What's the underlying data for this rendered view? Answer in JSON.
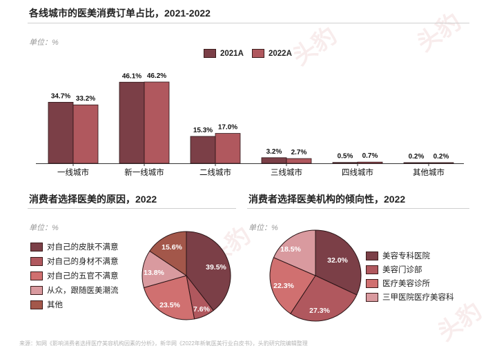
{
  "bar_section": {
    "title": "各线城市的医美消费订单占比，2021-2022",
    "unit": "单位：%"
  },
  "reasons_section": {
    "title": "消费者选择医美的原因，2022",
    "unit": "单位：%"
  },
  "institutions_section": {
    "title": "消费者选择医美机构的倾向性，2022",
    "unit": "单位：%"
  },
  "watermark": "头豹",
  "source": "来源：知网《影响消费者选择医疗美容机构因素的分析》，新华网《2022年新氧医美行业白皮书》，头豹研究院编辑整理",
  "colors": {
    "dark": "#7b3f47",
    "mid": "#b0585e",
    "light": "#d07070",
    "pale": "#d99a9f",
    "brown": "#a3574a"
  },
  "chart_data": [
    {
      "type": "bar",
      "categories": [
        "一线城市",
        "新一线城市",
        "二线城市",
        "三线城市",
        "四线城市",
        "其他城市"
      ],
      "series": [
        {
          "name": "2021A",
          "values": [
            34.7,
            46.1,
            15.3,
            3.2,
            0.5,
            0.2
          ],
          "labels": [
            "34.7%",
            "46.1%",
            "15.3%",
            "3.2%",
            "0.5%",
            "0.2%"
          ],
          "color": "#7b3f47"
        },
        {
          "name": "2022A",
          "values": [
            33.2,
            46.2,
            17.0,
            2.7,
            0.7,
            0.2
          ],
          "labels": [
            "33.2%",
            "46.2%",
            "17.0%",
            "2.7%",
            "0.7%",
            "0.2%"
          ],
          "color": "#b0585e"
        }
      ],
      "ylim": [
        0,
        46.2
      ],
      "legend_position": "top-right"
    },
    {
      "type": "pie",
      "slices": [
        {
          "label": "对自己的皮肤不满意",
          "value": 39.5,
          "text": "39.5%",
          "color": "#7b3f47"
        },
        {
          "label": "对自己的身材不满意",
          "value": 7.6,
          "text": "7.6%",
          "color": "#b0585e"
        },
        {
          "label": "对自己的五官不满意",
          "value": 23.5,
          "text": "23.5%",
          "color": "#d07070"
        },
        {
          "label": "从众，跟随医美潮流",
          "value": 13.8,
          "text": "13.8%",
          "color": "#d99a9f"
        },
        {
          "label": "其他",
          "value": 15.6,
          "text": "15.6%",
          "color": "#a3574a"
        }
      ],
      "legend_position": "left"
    },
    {
      "type": "pie",
      "slices": [
        {
          "label": "美容专科医院",
          "value": 32.0,
          "text": "32.0%",
          "color": "#7b3f47"
        },
        {
          "label": "美容门诊部",
          "value": 27.3,
          "text": "27.3%",
          "color": "#b0585e"
        },
        {
          "label": "医疗美容诊所",
          "value": 22.3,
          "text": "22.3%",
          "color": "#d07070"
        },
        {
          "label": "三甲医院医疗美容科",
          "value": 18.5,
          "text": "18.5%",
          "color": "#d99a9f"
        }
      ],
      "legend_position": "right"
    }
  ]
}
